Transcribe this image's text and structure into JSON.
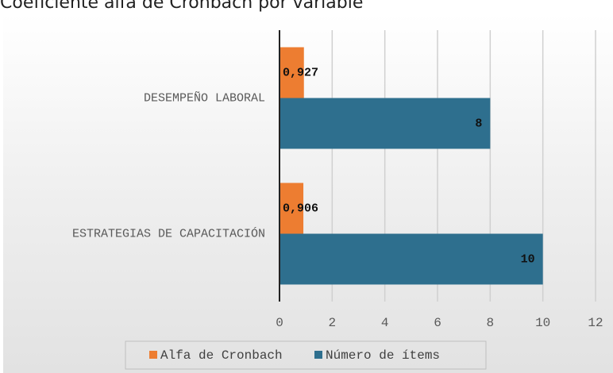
{
  "chart_data": {
    "type": "bar",
    "orientation": "horizontal",
    "title": "Coeficiente alfa de Cronbach por variable",
    "categories": [
      "DESEMPEÑO LABORAL",
      "ESTRATEGIAS DE CAPACITACIÓN"
    ],
    "series": [
      {
        "name": "Alfa de Cronbach",
        "color": "#ed7d31",
        "values": [
          0.927,
          0.906
        ],
        "value_labels": [
          "0,927",
          "0,906"
        ]
      },
      {
        "name": "Número de ítems",
        "color": "#2e6f8e",
        "values": [
          8,
          10
        ]
      }
    ],
    "xlim": [
      0,
      12
    ],
    "xticks": [
      0,
      2,
      4,
      6,
      8,
      10,
      12
    ],
    "grid": true,
    "legend": "bottom"
  }
}
